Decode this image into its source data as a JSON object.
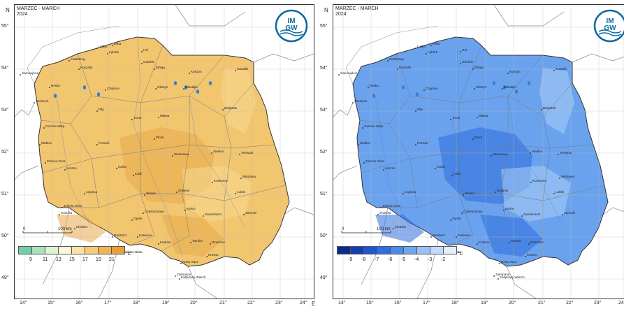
{
  "panels": [
    {
      "header_line1": "MARZEC - MARCH",
      "header_line2": "2024",
      "logo_text_top": "IM",
      "logo_text_bottom": "GW",
      "axis_n": "N",
      "axis_e": "E",
      "lat_ticks": [
        "55°",
        "54°",
        "53°",
        "52°",
        "51°",
        "50°",
        "49°"
      ],
      "lon_ticks": [
        "14°",
        "15°",
        "16°",
        "17°",
        "18°",
        "19°",
        "20°",
        "21°",
        "22°",
        "23°",
        "24°"
      ],
      "scale_left": "0",
      "scale_right": "100 km",
      "legend_values": [
        "9",
        "11",
        "13",
        "15",
        "17",
        "19",
        "21"
      ],
      "legend_unit": "°C",
      "legend_colors": [
        "#6fcfa6",
        "#a6e3b8",
        "#dcf3d8",
        "#fff7d8",
        "#fbe3a6",
        "#f6cc78",
        "#f0b558",
        "#e8a03c"
      ],
      "map_fill": "#f2c56f",
      "map_fill_light": "#f8d990",
      "map_fill_dark": "#e8a94a",
      "cities": [
        "Ustka",
        "Łeba",
        "Hel",
        "Lębork",
        "Gdańsk",
        "Kołobrzeg",
        "Koszalin",
        "Elbląg",
        "Świnoujście",
        "Kętrzyn",
        "Suwałki",
        "Resko",
        "Chojnice",
        "Olsztyn",
        "Mikołajki",
        "Szczecin",
        "Piła",
        "Toruń",
        "Mława",
        "Białystok",
        "Gorzów Wlkp.",
        "Płock",
        "Słubice",
        "Poznań",
        "Kalisz",
        "Warszawa",
        "Siedlce",
        "Terespol",
        "Zielona Góra",
        "Łódź",
        "Leszno",
        "Włodawa",
        "Sulejów",
        "Kozienice",
        "Legnica",
        "Wieluń",
        "Lublin",
        "Jelenia Góra",
        "Śnieżka",
        "Kłodzko",
        "Częstochowa",
        "Kielce",
        "Sandomierz",
        "Zamość",
        "Opole",
        "Racibórz",
        "Katowice",
        "Kraków",
        "Tarnów",
        "Rzeszów",
        "Bielsko-Biała",
        "Krosno",
        "Nowy Sącz",
        "Zakopane",
        "Kasprowy Wierch"
      ]
    },
    {
      "header_line1": "MARZEC - MARCH",
      "header_line2": "2024",
      "logo_text_top": "IM",
      "logo_text_bottom": "GW",
      "axis_n": "N",
      "axis_e": "E",
      "lat_ticks": [
        "55°",
        "54°",
        "53°",
        "52°",
        "51°",
        "50°",
        "49°"
      ],
      "lon_ticks": [
        "14°",
        "15°",
        "16°",
        "17°",
        "18°",
        "19°",
        "20°",
        "21°",
        "22°",
        "23°",
        "24°"
      ],
      "scale_left": "0",
      "scale_right": "100 km",
      "legend_values": [
        "-9",
        "-8",
        "-7",
        "-6",
        "-5",
        "-4",
        "-3",
        "-2"
      ],
      "legend_unit": "°C",
      "legend_colors": [
        "#0a2a8c",
        "#123fb0",
        "#1d56cf",
        "#2c6fe0",
        "#4a8aea",
        "#6fa6f0",
        "#97c1f5",
        "#c0dbfa",
        "#e2eefc"
      ],
      "map_fill": "#6aa2ee",
      "map_fill_light": "#a9cdf6",
      "map_fill_dark": "#2d6ddc",
      "cities": [
        "Ustka",
        "Łeba",
        "Hel",
        "Lębork",
        "Gdańsk",
        "Kołobrzeg",
        "Koszalin",
        "Elbląg",
        "Świnoujście",
        "Kętrzyn",
        "Suwałki",
        "Resko",
        "Chojnice",
        "Olsztyn",
        "Mikołajki",
        "Szczecin",
        "Piła",
        "Toruń",
        "Mława",
        "Białystok",
        "Gorzów Wlkp.",
        "Płock",
        "Słubice",
        "Poznań",
        "Kalisz",
        "Warszawa",
        "Siedlce",
        "Terespol",
        "Zielona Góra",
        "Łódź",
        "Leszno",
        "Włodawa",
        "Sulejów",
        "Kozienice",
        "Legnica",
        "Wieluń",
        "Lublin",
        "Jelenia Góra",
        "Śnieżka",
        "Kłodzko",
        "Częstochowa",
        "Kielce",
        "Sandomierz",
        "Zamość",
        "Opole",
        "Racibórz",
        "Katowice",
        "Kraków",
        "Tarnów",
        "Rzeszów",
        "Bielsko-Biała",
        "Krosno",
        "Nowy Sącz",
        "Zakopane",
        "Kasprowy Wierch"
      ]
    }
  ]
}
